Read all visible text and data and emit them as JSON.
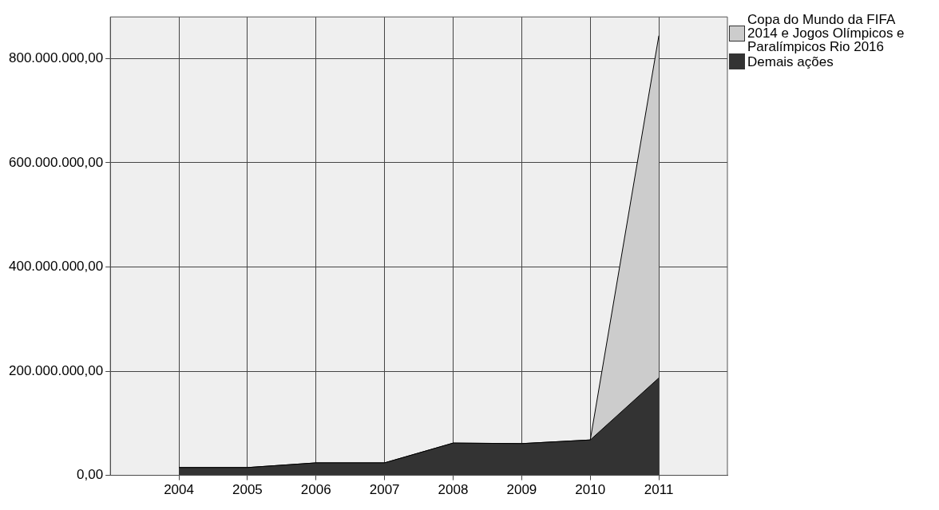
{
  "chart_data": {
    "type": "area",
    "stacked": true,
    "x": [
      2004,
      2005,
      2006,
      2007,
      2008,
      2009,
      2010,
      2011
    ],
    "series": [
      {
        "name": "Demais ações",
        "color": "#333333",
        "values": [
          15000000,
          15000000,
          24000000,
          24000000,
          62000000,
          61000000,
          68000000,
          187000000
        ]
      },
      {
        "name": "Copa do Mundo da FIFA 2014 e Jogos Olímpicos e Paralímpicos Rio 2016",
        "color": "#cccccc",
        "values": [
          0,
          0,
          0,
          0,
          0,
          0,
          0,
          657000000
        ]
      }
    ],
    "xlim": [
      2003,
      2012
    ],
    "xticks": [
      2004,
      2005,
      2006,
      2007,
      2008,
      2009,
      2010,
      2011
    ],
    "ylim": [
      0,
      880000000
    ],
    "yticks": [
      {
        "value": 0,
        "label": "0,00"
      },
      {
        "value": 200000000,
        "label": "200.000.000,00"
      },
      {
        "value": 400000000,
        "label": "400.000.000,00"
      },
      {
        "value": 600000000,
        "label": "600.000.000,00"
      },
      {
        "value": 800000000,
        "label": "800.000.000,00"
      }
    ],
    "grid": true,
    "legend": "top right"
  }
}
